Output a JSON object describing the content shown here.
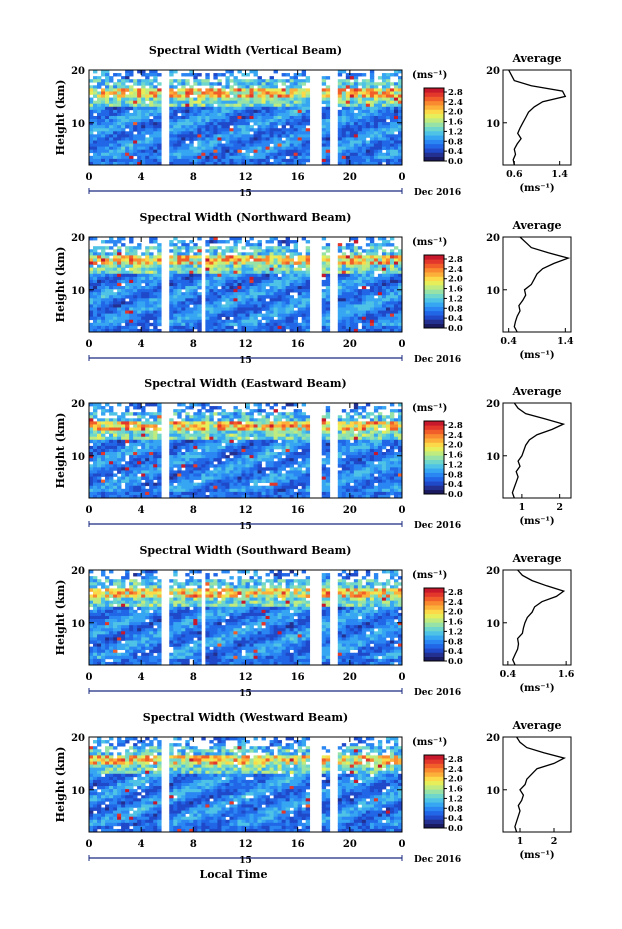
{
  "figure": {
    "x_title": "Local Time",
    "date_label": "Dec 2016",
    "day_label": "15"
  },
  "colorbar": {
    "unit": "(ms⁻¹)",
    "ticks": [
      "2.8",
      "2.4",
      "2.0",
      "1.6",
      "1.2",
      "0.8",
      "0.4",
      "0.0"
    ],
    "colors": [
      "#1a1a60",
      "#24308f",
      "#1f49c9",
      "#2066e6",
      "#2a86f2",
      "#37a6f2",
      "#4fc3e6",
      "#6fd6cc",
      "#97e2a6",
      "#c0eb7e",
      "#e6ee5a",
      "#fbd948",
      "#fcb039",
      "#f98a30",
      "#f25e29",
      "#e2372a",
      "#c8182c"
    ]
  },
  "chart_data": [
    {
      "type": "heatmap",
      "title": "Spectral Width (Vertical Beam)",
      "ylabel": "Height (km)",
      "xlabel": "Local Time",
      "x_ticks": [
        "0",
        "4",
        "8",
        "12",
        "16",
        "20",
        "0"
      ],
      "xlim": [
        0,
        24
      ],
      "y_ticks": [
        "10",
        "20"
      ],
      "ylim": [
        2,
        20
      ],
      "value_range": [
        0.0,
        3.0
      ],
      "data_gaps_hours": [
        [
          5.6,
          6.0
        ],
        [
          17.0,
          17.8
        ],
        [
          18.4,
          19.0
        ]
      ],
      "profile": {
        "title": "Average",
        "xlabel": "(ms⁻¹)",
        "x_ticks": [
          "0.6",
          "1.4"
        ],
        "tick_values": [
          0.6,
          1.4
        ],
        "xlim": [
          0.4,
          1.6
        ],
        "y_ticks": [
          "10",
          "20"
        ],
        "heights_km": [
          2,
          3,
          4,
          5,
          6,
          7,
          8,
          9,
          10,
          11,
          12,
          13,
          14,
          15,
          16,
          17,
          18,
          19,
          20
        ],
        "values": [
          0.6,
          0.58,
          0.62,
          0.6,
          0.65,
          0.72,
          0.66,
          0.7,
          0.75,
          0.8,
          0.85,
          0.95,
          1.1,
          1.5,
          1.45,
          0.9,
          0.6,
          0.55,
          0.5
        ]
      }
    },
    {
      "type": "heatmap",
      "title": "Spectral Width (Northward Beam)",
      "ylabel": "Height (km)",
      "xlabel": "Local Time",
      "x_ticks": [
        "0",
        "4",
        "8",
        "12",
        "16",
        "20",
        "0"
      ],
      "xlim": [
        0,
        24
      ],
      "y_ticks": [
        "10",
        "20"
      ],
      "ylim": [
        2,
        20
      ],
      "value_range": [
        0.0,
        3.0
      ],
      "data_gaps_hours": [
        [
          5.6,
          6.0
        ],
        [
          8.6,
          9.0
        ],
        [
          17.0,
          17.8
        ],
        [
          18.4,
          19.0
        ]
      ],
      "profile": {
        "title": "Average",
        "xlabel": "(ms⁻¹)",
        "x_ticks": [
          "0.4",
          "1.4"
        ],
        "tick_values": [
          0.4,
          1.4
        ],
        "xlim": [
          0.3,
          1.5
        ],
        "y_ticks": [
          "10",
          "20"
        ],
        "heights_km": [
          2,
          3,
          4,
          5,
          6,
          7,
          8,
          9,
          10,
          11,
          12,
          13,
          14,
          15,
          16,
          17,
          18,
          19,
          20
        ],
        "values": [
          0.55,
          0.5,
          0.52,
          0.55,
          0.6,
          0.58,
          0.65,
          0.7,
          0.68,
          0.8,
          0.85,
          0.9,
          1.0,
          1.2,
          1.45,
          1.1,
          0.8,
          0.7,
          0.6
        ]
      }
    },
    {
      "type": "heatmap",
      "title": "Spectral Width (Eastward Beam)",
      "ylabel": "Height (km)",
      "xlabel": "Local Time",
      "x_ticks": [
        "0",
        "4",
        "8",
        "12",
        "16",
        "20",
        "0"
      ],
      "xlim": [
        0,
        24
      ],
      "y_ticks": [
        "10",
        "20"
      ],
      "ylim": [
        2,
        20
      ],
      "value_range": [
        0.0,
        3.0
      ],
      "data_gaps_hours": [
        [
          5.6,
          6.0
        ],
        [
          17.0,
          17.8
        ],
        [
          18.4,
          19.0
        ]
      ],
      "profile": {
        "title": "Average",
        "xlabel": "(ms⁻¹)",
        "x_ticks": [
          "1",
          "2"
        ],
        "tick_values": [
          1,
          2
        ],
        "xlim": [
          0.5,
          2.3
        ],
        "y_ticks": [
          "10",
          "20"
        ],
        "heights_km": [
          2,
          3,
          4,
          5,
          6,
          7,
          8,
          9,
          10,
          11,
          12,
          13,
          14,
          15,
          16,
          17,
          18,
          19,
          20
        ],
        "values": [
          0.8,
          0.75,
          0.8,
          0.85,
          0.9,
          0.85,
          0.95,
          0.9,
          1.0,
          1.05,
          1.1,
          1.2,
          1.4,
          1.8,
          2.1,
          1.6,
          1.1,
          0.9,
          0.8
        ]
      }
    },
    {
      "type": "heatmap",
      "title": "Spectral Width (Southward Beam)",
      "ylabel": "Height (km)",
      "xlabel": "Local Time",
      "x_ticks": [
        "0",
        "4",
        "8",
        "12",
        "16",
        "20",
        "0"
      ],
      "xlim": [
        0,
        24
      ],
      "y_ticks": [
        "10",
        "20"
      ],
      "ylim": [
        2,
        20
      ],
      "value_range": [
        0.0,
        3.0
      ],
      "data_gaps_hours": [
        [
          5.6,
          6.0
        ],
        [
          8.6,
          9.0
        ],
        [
          17.0,
          17.8
        ],
        [
          18.4,
          19.0
        ]
      ],
      "profile": {
        "title": "Average",
        "xlabel": "(ms⁻¹)",
        "x_ticks": [
          "0.4",
          "1.6"
        ],
        "tick_values": [
          0.4,
          1.6
        ],
        "xlim": [
          0.3,
          1.7
        ],
        "y_ticks": [
          "10",
          "20"
        ],
        "heights_km": [
          2,
          3,
          4,
          5,
          6,
          7,
          8,
          9,
          10,
          11,
          12,
          13,
          14,
          15,
          16,
          17,
          18,
          19,
          20
        ],
        "values": [
          0.55,
          0.5,
          0.55,
          0.6,
          0.62,
          0.6,
          0.7,
          0.72,
          0.75,
          0.8,
          0.9,
          0.95,
          1.1,
          1.4,
          1.55,
          1.2,
          0.9,
          0.7,
          0.6
        ]
      }
    },
    {
      "type": "heatmap",
      "title": "Spectral Width (Westward Beam)",
      "ylabel": "Height (km)",
      "xlabel": "Local Time",
      "x_ticks": [
        "0",
        "4",
        "8",
        "12",
        "16",
        "20",
        "0"
      ],
      "xlim": [
        0,
        24
      ],
      "y_ticks": [
        "10",
        "20"
      ],
      "ylim": [
        2,
        20
      ],
      "value_range": [
        0.0,
        3.0
      ],
      "data_gaps_hours": [
        [
          5.6,
          6.0
        ],
        [
          17.0,
          17.8
        ],
        [
          18.4,
          19.0
        ]
      ],
      "profile": {
        "title": "Average",
        "xlabel": "(ms⁻¹)",
        "x_ticks": [
          "1",
          "2"
        ],
        "tick_values": [
          1,
          2
        ],
        "xlim": [
          0.5,
          2.5
        ],
        "y_ticks": [
          "10",
          "20"
        ],
        "heights_km": [
          2,
          3,
          4,
          5,
          6,
          7,
          8,
          9,
          10,
          11,
          12,
          13,
          14,
          15,
          16,
          17,
          18,
          19,
          20
        ],
        "values": [
          0.9,
          0.85,
          0.9,
          0.95,
          1.0,
          0.95,
          1.05,
          1.1,
          1.0,
          1.15,
          1.2,
          1.35,
          1.5,
          2.0,
          2.3,
          1.7,
          1.2,
          1.0,
          0.9
        ]
      }
    }
  ]
}
